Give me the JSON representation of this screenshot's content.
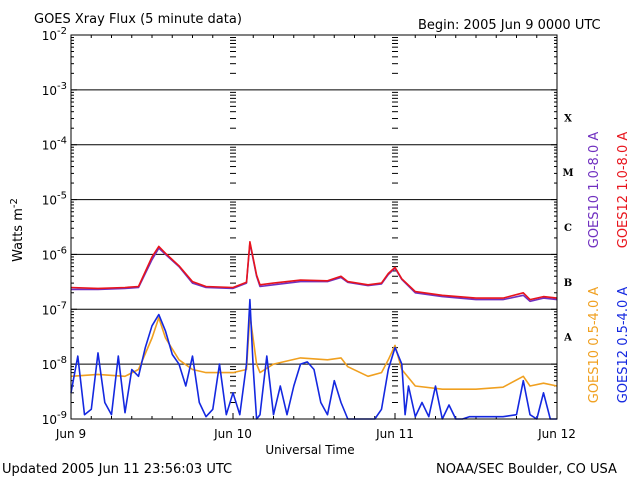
{
  "header": {
    "title": "GOES Xray Flux (5 minute data)",
    "begin": "Begin:  2005 Jun 9 0000 UTC"
  },
  "footer": {
    "updated": "Updated 2005 Jun 11 23:56:03 UTC",
    "credit": "NOAA/SEC Boulder, CO USA"
  },
  "chart_data": {
    "type": "line",
    "title": "GOES Xray Flux (5 minute data)",
    "xlabel": "Universal Time",
    "ylabel_main": "Watts m",
    "ylabel_exp": "-2",
    "y_scale": "log",
    "ylim": [
      1e-09,
      0.01
    ],
    "xlim": [
      0,
      72
    ],
    "x_unit": "hours since 2005 Jun 9 0000 UTC",
    "x_ticks": [
      {
        "x": 0,
        "label": "Jun 9"
      },
      {
        "x": 24,
        "label": "Jun 10"
      },
      {
        "x": 48,
        "label": "Jun 11"
      },
      {
        "x": 72,
        "label": "Jun 12"
      }
    ],
    "y_ticks": [
      {
        "exp": -2,
        "base": "10",
        "sup": "-2"
      },
      {
        "exp": -3,
        "base": "10",
        "sup": "-3"
      },
      {
        "exp": -4,
        "base": "10",
        "sup": "-4"
      },
      {
        "exp": -5,
        "base": "10",
        "sup": "-5"
      },
      {
        "exp": -6,
        "base": "10",
        "sup": "-6"
      },
      {
        "exp": -7,
        "base": "10",
        "sup": "-7"
      },
      {
        "exp": -8,
        "base": "10",
        "sup": "-8"
      },
      {
        "exp": -9,
        "base": "10",
        "sup": "-9"
      }
    ],
    "flare_classes": [
      {
        "label": "X",
        "exp": -3.5
      },
      {
        "label": "M",
        "exp": -4.5
      },
      {
        "label": "C",
        "exp": -5.5
      },
      {
        "label": "B",
        "exp": -6.5
      },
      {
        "label": "A",
        "exp": -7.5
      }
    ],
    "grid": true,
    "legend_position": "right (vertical)",
    "series": [
      {
        "name": "GOES10 1.0-8.0 A",
        "color": "#7030c0",
        "points": [
          [
            0,
            2.3e-07
          ],
          [
            4,
            2.3e-07
          ],
          [
            8,
            2.4e-07
          ],
          [
            10,
            2.5e-07
          ],
          [
            12,
            8e-07
          ],
          [
            13,
            1.3e-06
          ],
          [
            14,
            1e-06
          ],
          [
            16,
            6e-07
          ],
          [
            18,
            3e-07
          ],
          [
            20,
            2.5e-07
          ],
          [
            24,
            2.4e-07
          ],
          [
            26,
            3e-07
          ],
          [
            26.5,
            1.6e-06
          ],
          [
            27.5,
            4e-07
          ],
          [
            28,
            2.6e-07
          ],
          [
            30,
            2.8e-07
          ],
          [
            34,
            3.2e-07
          ],
          [
            38,
            3.2e-07
          ],
          [
            40,
            3.8e-07
          ],
          [
            41,
            3.1e-07
          ],
          [
            44,
            2.7e-07
          ],
          [
            46,
            2.9e-07
          ],
          [
            47,
            4.3e-07
          ],
          [
            48,
            5.6e-07
          ],
          [
            49,
            3.5e-07
          ],
          [
            51,
            2e-07
          ],
          [
            55,
            1.7e-07
          ],
          [
            60,
            1.5e-07
          ],
          [
            64,
            1.5e-07
          ],
          [
            67,
            1.8e-07
          ],
          [
            68,
            1.4e-07
          ],
          [
            70,
            1.6e-07
          ],
          [
            72,
            1.5e-07
          ]
        ]
      },
      {
        "name": "GOES12 1.0-8.0 A",
        "color": "#e8141c",
        "points": [
          [
            0,
            2.5e-07
          ],
          [
            4,
            2.4e-07
          ],
          [
            8,
            2.5e-07
          ],
          [
            10,
            2.6e-07
          ],
          [
            12,
            9e-07
          ],
          [
            13,
            1.4e-06
          ],
          [
            14,
            1.05e-06
          ],
          [
            16,
            6.2e-07
          ],
          [
            18,
            3.2e-07
          ],
          [
            20,
            2.6e-07
          ],
          [
            24,
            2.5e-07
          ],
          [
            26,
            3.1e-07
          ],
          [
            26.5,
            1.7e-06
          ],
          [
            27.5,
            4.2e-07
          ],
          [
            28,
            2.8e-07
          ],
          [
            30,
            3e-07
          ],
          [
            34,
            3.4e-07
          ],
          [
            38,
            3.3e-07
          ],
          [
            40,
            4e-07
          ],
          [
            41,
            3.2e-07
          ],
          [
            44,
            2.8e-07
          ],
          [
            46,
            3e-07
          ],
          [
            47,
            4.5e-07
          ],
          [
            48,
            5.8e-07
          ],
          [
            49,
            3.6e-07
          ],
          [
            51,
            2.1e-07
          ],
          [
            55,
            1.8e-07
          ],
          [
            60,
            1.6e-07
          ],
          [
            64,
            1.6e-07
          ],
          [
            67,
            2e-07
          ],
          [
            68,
            1.5e-07
          ],
          [
            70,
            1.7e-07
          ],
          [
            72,
            1.6e-07
          ]
        ]
      },
      {
        "name": "GOES10 0.5-4.0 A",
        "color": "#f0a020",
        "points": [
          [
            0,
            6e-09
          ],
          [
            4,
            6.5e-09
          ],
          [
            8,
            6e-09
          ],
          [
            10,
            8e-09
          ],
          [
            12,
            3e-08
          ],
          [
            13,
            7e-08
          ],
          [
            14,
            3e-08
          ],
          [
            16,
            1.2e-08
          ],
          [
            18,
            8e-09
          ],
          [
            20,
            7e-09
          ],
          [
            24,
            7e-09
          ],
          [
            26,
            8e-09
          ],
          [
            26.5,
            8e-08
          ],
          [
            27.5,
            1e-08
          ],
          [
            28,
            7e-09
          ],
          [
            30,
            1e-08
          ],
          [
            34,
            1.3e-08
          ],
          [
            38,
            1.2e-08
          ],
          [
            40,
            1.3e-08
          ],
          [
            41,
            9e-09
          ],
          [
            44,
            6e-09
          ],
          [
            46,
            7e-09
          ],
          [
            47,
            1.2e-08
          ],
          [
            48,
            2.2e-08
          ],
          [
            49,
            8e-09
          ],
          [
            51,
            4e-09
          ],
          [
            55,
            3.5e-09
          ],
          [
            60,
            3.5e-09
          ],
          [
            64,
            3.8e-09
          ],
          [
            67,
            6e-09
          ],
          [
            68,
            4e-09
          ],
          [
            70,
            4.5e-09
          ],
          [
            72,
            4e-09
          ]
        ]
      },
      {
        "name": "GOES12 0.5-4.0 A",
        "color": "#1428e0",
        "points": [
          [
            0,
            3e-09
          ],
          [
            1,
            1.4e-08
          ],
          [
            2,
            1.2e-09
          ],
          [
            3,
            1.5e-09
          ],
          [
            4,
            1.6e-08
          ],
          [
            5,
            2e-09
          ],
          [
            6,
            1.2e-09
          ],
          [
            7,
            1.4e-08
          ],
          [
            8,
            1.3e-09
          ],
          [
            9,
            8e-09
          ],
          [
            10,
            6e-09
          ],
          [
            11,
            2e-08
          ],
          [
            12,
            5e-08
          ],
          [
            13,
            8e-08
          ],
          [
            14,
            4e-08
          ],
          [
            15,
            1.5e-08
          ],
          [
            16,
            1e-08
          ],
          [
            17,
            4e-09
          ],
          [
            18,
            1.4e-08
          ],
          [
            19,
            2e-09
          ],
          [
            20,
            1.1e-09
          ],
          [
            21,
            1.5e-09
          ],
          [
            22,
            1e-08
          ],
          [
            23,
            1.2e-09
          ],
          [
            24,
            3e-09
          ],
          [
            25,
            1.2e-09
          ],
          [
            26,
            1e-08
          ],
          [
            26.5,
            1.5e-07
          ],
          [
            27,
            8e-09
          ],
          [
            27.5,
            1e-09
          ],
          [
            28,
            1.2e-09
          ],
          [
            29,
            1.4e-08
          ],
          [
            30,
            1.2e-09
          ],
          [
            31,
            4e-09
          ],
          [
            32,
            1.2e-09
          ],
          [
            33,
            4e-09
          ],
          [
            34,
            1e-08
          ],
          [
            35,
            1.1e-08
          ],
          [
            36,
            8e-09
          ],
          [
            37,
            2e-09
          ],
          [
            38,
            1.2e-09
          ],
          [
            39,
            5e-09
          ],
          [
            40,
            2e-09
          ],
          [
            41,
            1e-09
          ],
          [
            45,
            1e-09
          ],
          [
            46,
            1.5e-09
          ],
          [
            47,
            8e-09
          ],
          [
            48,
            2e-08
          ],
          [
            49,
            1e-08
          ],
          [
            49.5,
            1.2e-09
          ],
          [
            50,
            4e-09
          ],
          [
            51,
            1.1e-09
          ],
          [
            52,
            2e-09
          ],
          [
            53,
            1.1e-09
          ],
          [
            54,
            4e-09
          ],
          [
            55,
            1e-09
          ],
          [
            56,
            1.8e-09
          ],
          [
            57,
            1e-09
          ],
          [
            58,
            1e-09
          ],
          [
            59,
            1.1e-09
          ],
          [
            60,
            1.1e-09
          ],
          [
            64,
            1.1e-09
          ],
          [
            66,
            1.2e-09
          ],
          [
            67,
            5e-09
          ],
          [
            68,
            1.2e-09
          ],
          [
            69,
            1e-09
          ],
          [
            70,
            3e-09
          ],
          [
            71,
            1e-09
          ],
          [
            72,
            1e-09
          ]
        ]
      }
    ]
  }
}
